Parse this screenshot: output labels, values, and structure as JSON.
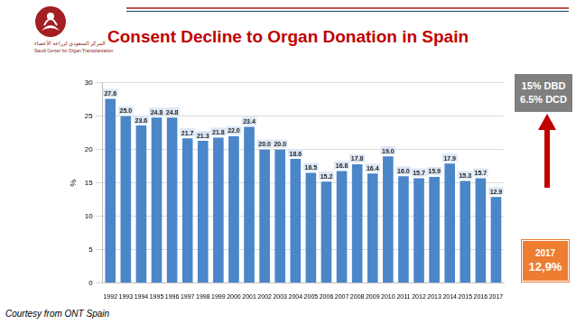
{
  "chart_data": {
    "type": "bar",
    "title": "Consent Decline to Organ Donation in Spain",
    "y_label": "%",
    "categories": [
      "1992",
      "1993",
      "1994",
      "1995",
      "1996",
      "1997",
      "1998",
      "1999",
      "2000",
      "2001",
      "2002",
      "2003",
      "2004",
      "2005",
      "2006",
      "2007",
      "2008",
      "2009",
      "2010",
      "2011",
      "2012",
      "2013",
      "2014",
      "2015",
      "2016",
      "2017"
    ],
    "values": [
      27.6,
      25.0,
      23.6,
      24.8,
      24.8,
      21.7,
      21.3,
      21.8,
      22.0,
      23.4,
      20.0,
      20.0,
      18.6,
      16.5,
      15.2,
      16.8,
      17.8,
      16.4,
      19.0,
      16.0,
      15.7,
      15.9,
      17.9,
      15.3,
      15.7,
      12.9
    ],
    "value_labels": [
      "27.6",
      "25.0",
      "23.6",
      "24.8",
      "24.8",
      "21.7",
      "21.3",
      "21.8",
      "22.0",
      "23.4",
      "20.0",
      "20.0",
      "18.6",
      "16.5",
      "15.2",
      "16.8",
      "17.8",
      "16.4",
      "19.0",
      "16.0",
      "15.7",
      "15.9",
      "17.9",
      "15.3",
      "15.7",
      "12.9"
    ],
    "data_labels": true,
    "color": "#4a86c8",
    "ylim": [
      0,
      30
    ],
    "yticks": [
      0,
      5,
      10,
      15,
      20,
      25,
      30
    ],
    "grid": true,
    "annotations": {
      "dbd_box": [
        "15% DBD",
        "6.5% DCD"
      ],
      "year_box": [
        "2017",
        "12,9%"
      ]
    },
    "source": "Courtesy from ONT Spain",
    "logo": {
      "arabic": "المركز السعودي لزراعة الأعضاء",
      "english": "Saudi Center for Organ Transplantation"
    }
  }
}
